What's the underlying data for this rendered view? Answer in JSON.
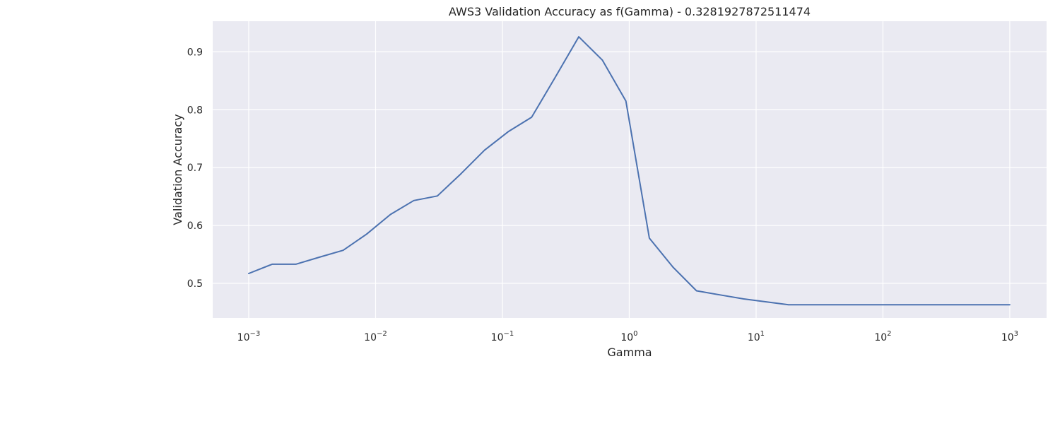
{
  "chart_data": {
    "type": "line",
    "title": "AWS3 Validation Accuracy as f(Gamma) - 0.3281927872511474",
    "xlabel": "Gamma",
    "ylabel": "Validation Accuracy",
    "xscale": "log",
    "xlim": [
      0.00052,
      1950
    ],
    "ylim": [
      0.44,
      0.953
    ],
    "grid": true,
    "x_ticks": [
      {
        "base": "10",
        "exp": "−3",
        "value": 0.001
      },
      {
        "base": "10",
        "exp": "−2",
        "value": 0.01
      },
      {
        "base": "10",
        "exp": "−1",
        "value": 0.1
      },
      {
        "base": "10",
        "exp": "0",
        "value": 1
      },
      {
        "base": "10",
        "exp": "1",
        "value": 10
      },
      {
        "base": "10",
        "exp": "2",
        "value": 100
      },
      {
        "base": "10",
        "exp": "3",
        "value": 1000
      }
    ],
    "y_ticks": [
      {
        "label": "0.5",
        "value": 0.5
      },
      {
        "label": "0.6",
        "value": 0.6
      },
      {
        "label": "0.7",
        "value": 0.7
      },
      {
        "label": "0.8",
        "value": 0.8
      },
      {
        "label": "0.9",
        "value": 0.9
      }
    ],
    "series": [
      {
        "color": "#4c72b0",
        "x": [
          0.001,
          0.00153,
          0.00235,
          0.0036,
          0.00555,
          0.0085,
          0.0131,
          0.02,
          0.0307,
          0.047,
          0.0722,
          0.111,
          0.17,
          0.261,
          0.4,
          0.613,
          0.941,
          1.44,
          2.21,
          3.39,
          5.2,
          7.98,
          18.0,
          1000
        ],
        "y": [
          0.517,
          0.533,
          0.533,
          0.545,
          0.557,
          0.585,
          0.619,
          0.643,
          0.651,
          0.689,
          0.73,
          0.762,
          0.787,
          0.856,
          0.926,
          0.886,
          0.815,
          0.578,
          0.528,
          0.487,
          0.48,
          0.473,
          0.463,
          0.463
        ]
      }
    ]
  }
}
